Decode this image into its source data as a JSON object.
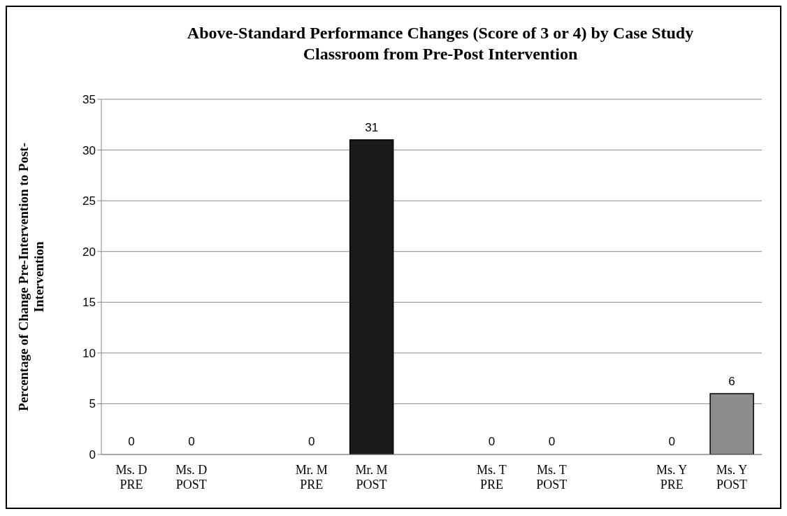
{
  "chart_data": {
    "type": "bar",
    "title": "Above-Standard Performance Changes  (Score of 3 or 4) by Case Study Classroom from Pre-Post Intervention",
    "ylabel": "Percentage of Change Pre-Intervention to Post-Intervention",
    "categories": [
      "Ms. D PRE",
      "Ms. D POST",
      null,
      "Mr. M PRE",
      "Mr. M POST",
      null,
      "Ms. T PRE",
      "Ms. T POST",
      null,
      "Ms. Y PRE",
      "Ms. Y POST"
    ],
    "values": [
      0,
      0,
      null,
      0,
      31,
      null,
      0,
      0,
      null,
      0,
      6
    ],
    "colors": [
      null,
      null,
      null,
      null,
      "#1a1a1a",
      null,
      null,
      null,
      null,
      null,
      "#8c8c8c"
    ],
    "ylim": [
      0,
      35
    ],
    "yticks": [
      0,
      5,
      10,
      15,
      20,
      25,
      30,
      35
    ],
    "grid": "y",
    "data_labels": true,
    "legend": false
  }
}
